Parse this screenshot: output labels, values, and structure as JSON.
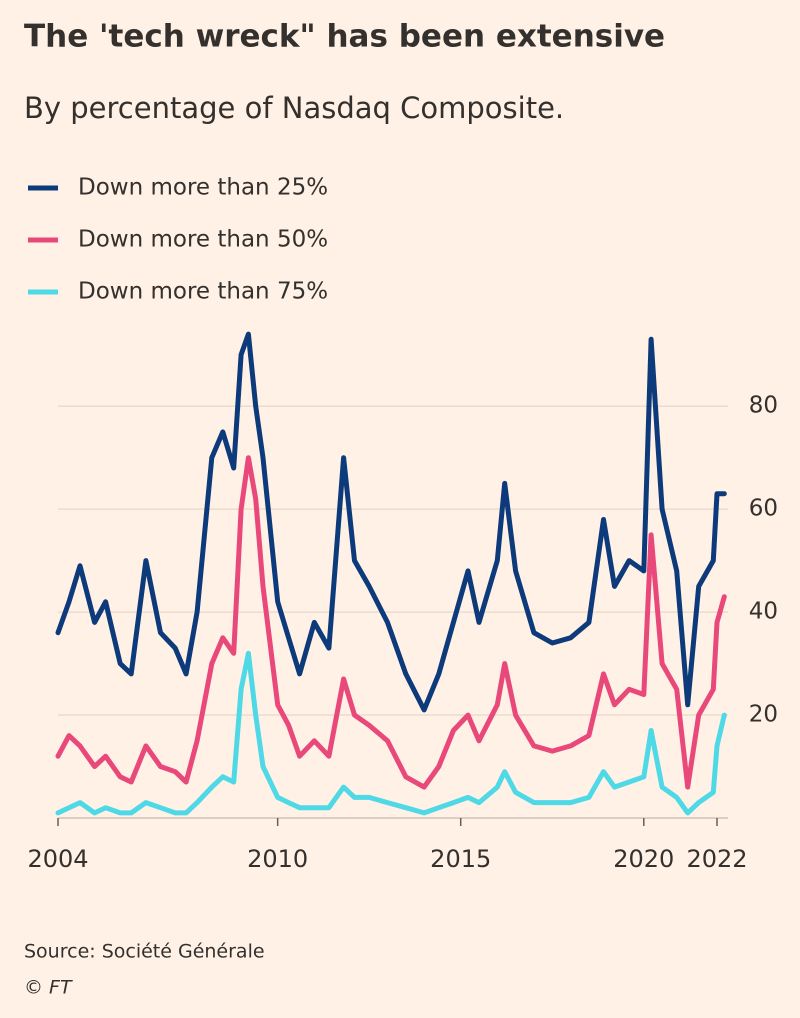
{
  "chart_data": {
    "type": "line",
    "title": "The 'tech wreck\" has been extensive",
    "subtitle": "By percentage of Nasdaq Composite.",
    "source": "Source: Société Générale",
    "credit": "© FT",
    "x": [
      2004.0,
      2004.3,
      2004.6,
      2005.0,
      2005.3,
      2005.7,
      2006.0,
      2006.4,
      2006.8,
      2007.2,
      2007.5,
      2007.8,
      2008.2,
      2008.5,
      2008.8,
      2009.0,
      2009.2,
      2009.4,
      2009.6,
      2010.0,
      2010.3,
      2010.6,
      2011.0,
      2011.4,
      2011.8,
      2012.1,
      2012.5,
      2013.0,
      2013.5,
      2014.0,
      2014.4,
      2014.8,
      2015.2,
      2015.5,
      2016.0,
      2016.2,
      2016.5,
      2017.0,
      2017.5,
      2018.0,
      2018.5,
      2018.9,
      2019.2,
      2019.6,
      2020.0,
      2020.2,
      2020.5,
      2020.9,
      2021.2,
      2021.5,
      2021.9,
      2022.0,
      2022.2
    ],
    "series": [
      {
        "name": "Down more than 25%",
        "color": "#0d3a7b",
        "values": [
          36,
          42,
          49,
          38,
          42,
          30,
          28,
          50,
          36,
          33,
          28,
          40,
          70,
          75,
          68,
          90,
          94,
          80,
          70,
          42,
          35,
          28,
          38,
          33,
          70,
          50,
          45,
          38,
          28,
          21,
          28,
          38,
          48,
          38,
          50,
          65,
          48,
          36,
          34,
          35,
          38,
          58,
          45,
          50,
          48,
          93,
          60,
          48,
          22,
          45,
          50,
          63,
          63
        ]
      },
      {
        "name": "Down more than 50%",
        "color": "#e9497a",
        "values": [
          12,
          16,
          14,
          10,
          12,
          8,
          7,
          14,
          10,
          9,
          7,
          15,
          30,
          35,
          32,
          60,
          70,
          62,
          45,
          22,
          18,
          12,
          15,
          12,
          27,
          20,
          18,
          15,
          8,
          6,
          10,
          17,
          20,
          15,
          22,
          30,
          20,
          14,
          13,
          14,
          16,
          28,
          22,
          25,
          24,
          55,
          30,
          25,
          6,
          20,
          25,
          38,
          43
        ]
      },
      {
        "name": "Down more than 75%",
        "color": "#4fd8e6",
        "values": [
          1,
          2,
          3,
          1,
          2,
          1,
          1,
          3,
          2,
          1,
          1,
          3,
          6,
          8,
          7,
          25,
          32,
          20,
          10,
          4,
          3,
          2,
          2,
          2,
          6,
          4,
          4,
          3,
          2,
          1,
          2,
          3,
          4,
          3,
          6,
          9,
          5,
          3,
          3,
          3,
          4,
          9,
          6,
          7,
          8,
          17,
          6,
          4,
          1,
          3,
          5,
          14,
          20
        ]
      }
    ],
    "xlim": [
      2004,
      2022.3
    ],
    "xticks": [
      2004,
      2010,
      2015,
      2020,
      2022
    ],
    "ylim": [
      0,
      95
    ],
    "yticks": [
      20,
      40,
      60,
      80
    ],
    "grid": true
  }
}
